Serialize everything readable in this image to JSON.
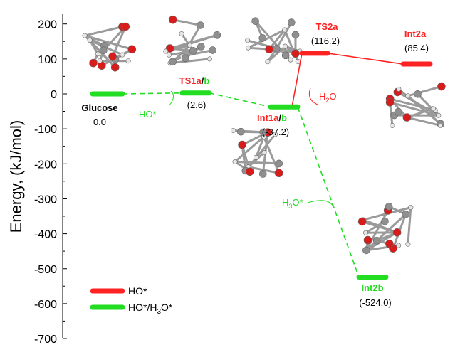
{
  "chart_data": {
    "type": "line",
    "ylabel": "Energy, (kJ/mol)",
    "ylim": [
      -700,
      200
    ],
    "yticks": [
      200,
      100,
      0,
      -100,
      -200,
      -300,
      -400,
      -500,
      -600,
      -700
    ],
    "colors": {
      "HO": "#ff2222",
      "HO_H3O": "#22dd22"
    },
    "legend": {
      "placement": "bottom-left",
      "entries": [
        {
          "series": "HO",
          "name": "HO*"
        },
        {
          "series": "HO_H3O",
          "name": "HO*/H3O*",
          "sub": "3",
          "pre": "HO*/H",
          "post": "O*"
        }
      ]
    },
    "states": [
      {
        "id": "glucose",
        "label": "Glucose",
        "value_text": "0.0",
        "energy": 0.0,
        "color": "#000000"
      },
      {
        "id": "ts1",
        "label_a": "TS1a",
        "label_sep": "/",
        "label_b": "b",
        "value_text": "(2.6)",
        "energy": 2.6,
        "color": "#22dd22"
      },
      {
        "id": "int1",
        "label_a": "Int1a",
        "label_sep": "/",
        "label_b": "b",
        "value_text": "(-37.2)",
        "energy": -37.2,
        "color": "#22dd22"
      },
      {
        "id": "ts2a",
        "label": "TS2a",
        "value_text": "(116.2)",
        "energy": 116.2,
        "color": "#ff2222"
      },
      {
        "id": "int2a",
        "label": "Int2a",
        "value_text": "(85.4)",
        "energy": 85.4,
        "color": "#ff2222"
      },
      {
        "id": "int2b",
        "label": "Int2b",
        "value_text": "(-524.0)",
        "energy": -524.0,
        "color": "#22dd22"
      }
    ],
    "series": [
      {
        "name": "HO*",
        "key": "HO",
        "path": [
          "int1",
          "ts2a",
          "int2a"
        ]
      },
      {
        "name": "HO*/H3O*",
        "key": "HO_H3O",
        "path": [
          "glucose",
          "ts1",
          "int1",
          "int2b"
        ]
      }
    ],
    "annotations": [
      {
        "id": "ho",
        "text": "HO*",
        "color": "#22dd22"
      },
      {
        "id": "h2o",
        "pre": "H",
        "sub": "2",
        "post": "O",
        "color": "#ff2222"
      },
      {
        "id": "h3o",
        "pre": "H",
        "sub": "3",
        "post": "O*",
        "color": "#22dd22"
      }
    ]
  }
}
